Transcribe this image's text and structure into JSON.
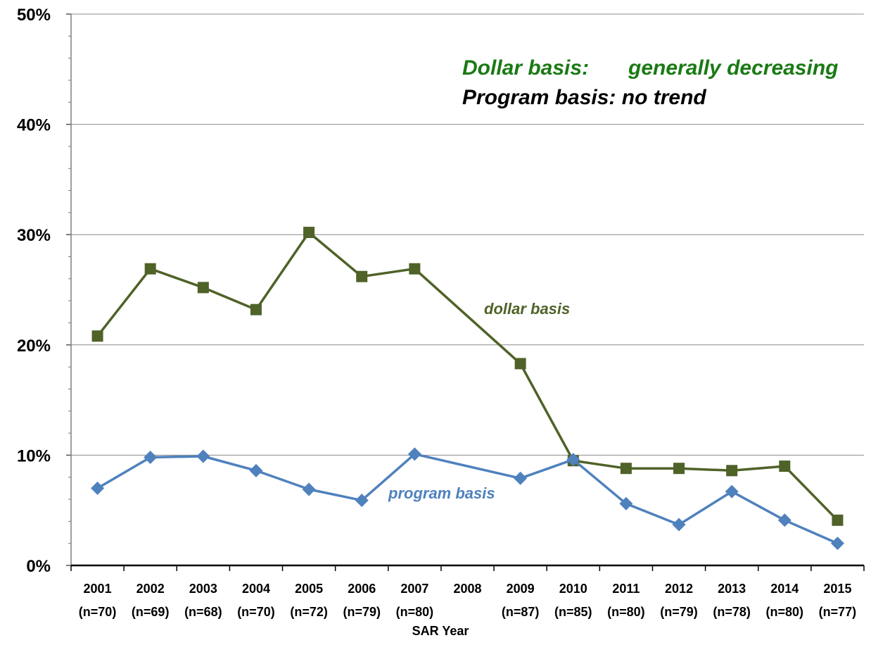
{
  "chart_data": {
    "type": "line",
    "xlabel": "SAR Year",
    "ylabel": "",
    "ylim": [
      0,
      50
    ],
    "yticks": [
      "0%",
      "10%",
      "20%",
      "30%",
      "40%",
      "50%"
    ],
    "ytick_values": [
      0,
      10,
      20,
      30,
      40,
      50
    ],
    "grid": "horizontal",
    "categories": [
      {
        "year": "2001",
        "n": "(n=70)"
      },
      {
        "year": "2002",
        "n": "(n=69)"
      },
      {
        "year": "2003",
        "n": "(n=68)"
      },
      {
        "year": "2004",
        "n": "(n=70)"
      },
      {
        "year": "2005",
        "n": "(n=72)"
      },
      {
        "year": "2006",
        "n": "(n=79)"
      },
      {
        "year": "2007",
        "n": "(n=80)"
      },
      {
        "year": "2008",
        "n": ""
      },
      {
        "year": "2009",
        "n": "(n=87)"
      },
      {
        "year": "2010",
        "n": "(n=85)"
      },
      {
        "year": "2011",
        "n": "(n=80)"
      },
      {
        "year": "2012",
        "n": "(n=79)"
      },
      {
        "year": "2013",
        "n": "(n=78)"
      },
      {
        "year": "2014",
        "n": "(n=80)"
      },
      {
        "year": "2015",
        "n": "(n=77)"
      }
    ],
    "series": [
      {
        "name": "dollar basis",
        "color": "#4f6228",
        "marker": "square",
        "values": [
          20.8,
          26.9,
          25.2,
          23.2,
          30.2,
          26.2,
          26.9,
          null,
          18.3,
          9.5,
          8.8,
          8.8,
          8.6,
          9.0,
          4.1
        ]
      },
      {
        "name": "program basis",
        "color": "#4f81bd",
        "marker": "diamond",
        "values": [
          7.0,
          9.8,
          9.9,
          8.6,
          6.9,
          5.9,
          10.1,
          null,
          7.9,
          9.6,
          5.6,
          3.7,
          6.7,
          4.1,
          2.0
        ]
      }
    ],
    "annotations": {
      "dollar_note_label": "Dollar basis:",
      "dollar_note_value": "generally decreasing",
      "program_note": "Program basis: no trend"
    }
  }
}
